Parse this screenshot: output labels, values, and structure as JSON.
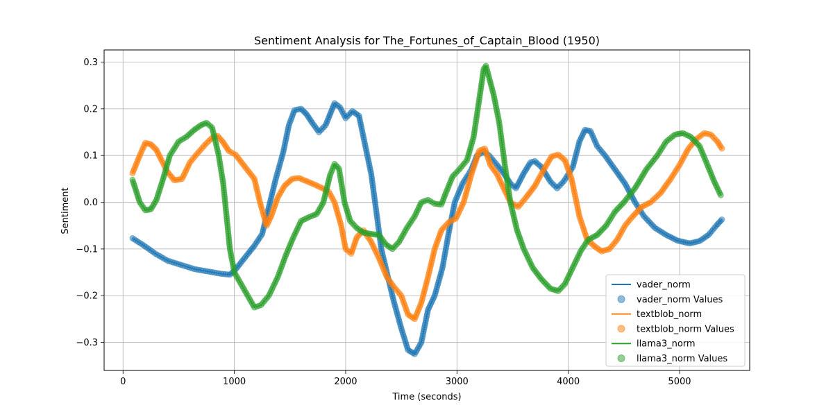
{
  "chart_data": {
    "type": "line",
    "title": "Sentiment Analysis for The_Fortunes_of_Captain_Blood (1950)",
    "xlabel": "Time (seconds)",
    "ylabel": "Sentiment",
    "xlim": [
      -170,
      5630
    ],
    "ylim": [
      -0.36,
      0.326
    ],
    "xticks": [
      0,
      1000,
      2000,
      3000,
      4000,
      5000
    ],
    "yticks": [
      -0.3,
      -0.2,
      -0.1,
      0.0,
      0.1,
      0.2,
      0.3
    ],
    "xtick_labels": [
      "0",
      "1000",
      "2000",
      "3000",
      "4000",
      "5000"
    ],
    "ytick_labels": [
      "−0.3",
      "−0.2",
      "−0.1",
      "0.0",
      "0.1",
      "0.2",
      "0.3"
    ],
    "grid": true,
    "legend_position": "lower-right",
    "legend": [
      "vader_norm",
      "vader_norm Values",
      "textblob_norm",
      "textblob_norm Values",
      "llama3_norm",
      "llama3_norm Values"
    ],
    "series": [
      {
        "name": "vader_norm",
        "color": "#1f77b4",
        "points": [
          [
            85,
            -0.077
          ],
          [
            190,
            -0.093
          ],
          [
            290,
            -0.11
          ],
          [
            400,
            -0.125
          ],
          [
            520,
            -0.134
          ],
          [
            640,
            -0.143
          ],
          [
            760,
            -0.148
          ],
          [
            880,
            -0.153
          ],
          [
            960,
            -0.155
          ],
          [
            1000,
            -0.147
          ],
          [
            1180,
            -0.093
          ],
          [
            1250,
            -0.068
          ],
          [
            1310,
            -0.01
          ],
          [
            1370,
            0.048
          ],
          [
            1440,
            0.108
          ],
          [
            1490,
            0.165
          ],
          [
            1540,
            0.197
          ],
          [
            1600,
            0.2
          ],
          [
            1650,
            0.188
          ],
          [
            1700,
            0.17
          ],
          [
            1760,
            0.15
          ],
          [
            1820,
            0.165
          ],
          [
            1900,
            0.212
          ],
          [
            1950,
            0.203
          ],
          [
            2000,
            0.18
          ],
          [
            2060,
            0.195
          ],
          [
            2120,
            0.185
          ],
          [
            2230,
            0.06
          ],
          [
            2270,
            -0.01
          ],
          [
            2320,
            -0.1
          ],
          [
            2370,
            -0.15
          ],
          [
            2430,
            -0.21
          ],
          [
            2500,
            -0.27
          ],
          [
            2560,
            -0.316
          ],
          [
            2620,
            -0.325
          ],
          [
            2680,
            -0.3
          ],
          [
            2740,
            -0.23
          ],
          [
            2800,
            -0.2
          ],
          [
            2870,
            -0.14
          ],
          [
            2930,
            -0.06
          ],
          [
            2980,
            0.0
          ],
          [
            3050,
            0.04
          ],
          [
            3130,
            0.07
          ],
          [
            3180,
            0.1
          ],
          [
            3240,
            0.108
          ],
          [
            3290,
            0.1
          ],
          [
            3360,
            0.08
          ],
          [
            3420,
            0.062
          ],
          [
            3480,
            0.04
          ],
          [
            3530,
            0.03
          ],
          [
            3600,
            0.062
          ],
          [
            3660,
            0.085
          ],
          [
            3700,
            0.088
          ],
          [
            3760,
            0.075
          ],
          [
            3840,
            0.044
          ],
          [
            3900,
            0.03
          ],
          [
            3960,
            0.045
          ],
          [
            4040,
            0.075
          ],
          [
            4100,
            0.13
          ],
          [
            4150,
            0.155
          ],
          [
            4200,
            0.152
          ],
          [
            4260,
            0.12
          ],
          [
            4330,
            0.1
          ],
          [
            4420,
            0.07
          ],
          [
            4510,
            0.04
          ],
          [
            4600,
            0.0
          ],
          [
            4680,
            -0.03
          ],
          [
            4780,
            -0.055
          ],
          [
            4880,
            -0.07
          ],
          [
            4980,
            -0.082
          ],
          [
            5090,
            -0.088
          ],
          [
            5180,
            -0.083
          ],
          [
            5260,
            -0.07
          ],
          [
            5330,
            -0.05
          ],
          [
            5380,
            -0.037
          ]
        ]
      },
      {
        "name": "textblob_norm",
        "color": "#ff7f0e",
        "points": [
          [
            85,
            0.062
          ],
          [
            150,
            0.1
          ],
          [
            200,
            0.127
          ],
          [
            250,
            0.124
          ],
          [
            300,
            0.112
          ],
          [
            350,
            0.088
          ],
          [
            400,
            0.065
          ],
          [
            460,
            0.047
          ],
          [
            530,
            0.05
          ],
          [
            600,
            0.085
          ],
          [
            670,
            0.105
          ],
          [
            740,
            0.124
          ],
          [
            800,
            0.138
          ],
          [
            850,
            0.142
          ],
          [
            900,
            0.128
          ],
          [
            950,
            0.11
          ],
          [
            1010,
            0.102
          ],
          [
            1180,
            0.05
          ],
          [
            1230,
            0.0
          ],
          [
            1290,
            -0.05
          ],
          [
            1330,
            -0.03
          ],
          [
            1390,
            0.01
          ],
          [
            1450,
            0.035
          ],
          [
            1520,
            0.05
          ],
          [
            1580,
            0.052
          ],
          [
            1650,
            0.045
          ],
          [
            1720,
            0.038
          ],
          [
            1790,
            0.03
          ],
          [
            1850,
            0.022
          ],
          [
            1900,
            0.0
          ],
          [
            1960,
            -0.05
          ],
          [
            2000,
            -0.1
          ],
          [
            2050,
            -0.11
          ],
          [
            2100,
            -0.075
          ],
          [
            2160,
            -0.06
          ],
          [
            2230,
            -0.085
          ],
          [
            2300,
            -0.12
          ],
          [
            2370,
            -0.16
          ],
          [
            2430,
            -0.18
          ],
          [
            2500,
            -0.2
          ],
          [
            2560,
            -0.24
          ],
          [
            2620,
            -0.25
          ],
          [
            2680,
            -0.215
          ],
          [
            2740,
            -0.16
          ],
          [
            2800,
            -0.1
          ],
          [
            2860,
            -0.06
          ],
          [
            2930,
            -0.042
          ],
          [
            2990,
            -0.035
          ],
          [
            3060,
            0.0
          ],
          [
            3130,
            0.06
          ],
          [
            3200,
            0.11
          ],
          [
            3250,
            0.115
          ],
          [
            3300,
            0.08
          ],
          [
            3360,
            0.06
          ],
          [
            3420,
            0.03
          ],
          [
            3480,
            0.0
          ],
          [
            3550,
            -0.01
          ],
          [
            3620,
            0.01
          ],
          [
            3700,
            0.035
          ],
          [
            3780,
            0.07
          ],
          [
            3850,
            0.098
          ],
          [
            3910,
            0.102
          ],
          [
            3970,
            0.09
          ],
          [
            4030,
            0.05
          ],
          [
            4100,
            -0.03
          ],
          [
            4170,
            -0.08
          ],
          [
            4240,
            -0.095
          ],
          [
            4300,
            -0.105
          ],
          [
            4370,
            -0.1
          ],
          [
            4440,
            -0.08
          ],
          [
            4510,
            -0.05
          ],
          [
            4580,
            -0.03
          ],
          [
            4660,
            -0.01
          ],
          [
            4740,
            0.0
          ],
          [
            4830,
            0.02
          ],
          [
            4920,
            0.05
          ],
          [
            5000,
            0.08
          ],
          [
            5080,
            0.115
          ],
          [
            5150,
            0.135
          ],
          [
            5220,
            0.148
          ],
          [
            5280,
            0.145
          ],
          [
            5340,
            0.13
          ],
          [
            5380,
            0.115
          ]
        ]
      },
      {
        "name": "llama3_norm",
        "color": "#2ca02c",
        "points": [
          [
            85,
            0.048
          ],
          [
            150,
            0.0
          ],
          [
            200,
            -0.017
          ],
          [
            250,
            -0.015
          ],
          [
            300,
            0.005
          ],
          [
            360,
            0.05
          ],
          [
            420,
            0.1
          ],
          [
            500,
            0.13
          ],
          [
            570,
            0.14
          ],
          [
            640,
            0.155
          ],
          [
            700,
            0.165
          ],
          [
            750,
            0.17
          ],
          [
            800,
            0.16
          ],
          [
            860,
            0.1
          ],
          [
            900,
            0.04
          ],
          [
            930,
            -0.03
          ],
          [
            960,
            -0.1
          ],
          [
            1000,
            -0.15
          ],
          [
            1180,
            -0.225
          ],
          [
            1240,
            -0.22
          ],
          [
            1310,
            -0.2
          ],
          [
            1390,
            -0.16
          ],
          [
            1460,
            -0.115
          ],
          [
            1530,
            -0.075
          ],
          [
            1600,
            -0.04
          ],
          [
            1670,
            -0.032
          ],
          [
            1740,
            -0.025
          ],
          [
            1800,
            0.0
          ],
          [
            1860,
            0.058
          ],
          [
            1900,
            0.082
          ],
          [
            1940,
            0.072
          ],
          [
            1990,
            0.0
          ],
          [
            2040,
            -0.04
          ],
          [
            2100,
            -0.055
          ],
          [
            2160,
            -0.065
          ],
          [
            2230,
            -0.068
          ],
          [
            2300,
            -0.07
          ],
          [
            2360,
            -0.09
          ],
          [
            2420,
            -0.1
          ],
          [
            2480,
            -0.085
          ],
          [
            2550,
            -0.055
          ],
          [
            2620,
            -0.03
          ],
          [
            2680,
            0.0
          ],
          [
            2740,
            0.005
          ],
          [
            2800,
            -0.003
          ],
          [
            2860,
            -0.005
          ],
          [
            2900,
            0.02
          ],
          [
            2960,
            0.055
          ],
          [
            3020,
            0.07
          ],
          [
            3090,
            0.09
          ],
          [
            3150,
            0.14
          ],
          [
            3200,
            0.22
          ],
          [
            3240,
            0.285
          ],
          [
            3260,
            0.292
          ],
          [
            3330,
            0.23
          ],
          [
            3380,
            0.17
          ],
          [
            3430,
            0.08
          ],
          [
            3480,
            0.0
          ],
          [
            3540,
            -0.06
          ],
          [
            3600,
            -0.1
          ],
          [
            3680,
            -0.14
          ],
          [
            3760,
            -0.165
          ],
          [
            3840,
            -0.185
          ],
          [
            3910,
            -0.19
          ],
          [
            3970,
            -0.175
          ],
          [
            4040,
            -0.14
          ],
          [
            4110,
            -0.105
          ],
          [
            4180,
            -0.08
          ],
          [
            4260,
            -0.07
          ],
          [
            4340,
            -0.05
          ],
          [
            4420,
            -0.02
          ],
          [
            4500,
            0.0
          ],
          [
            4600,
            0.03
          ],
          [
            4700,
            0.07
          ],
          [
            4800,
            0.1
          ],
          [
            4880,
            0.13
          ],
          [
            4960,
            0.145
          ],
          [
            5030,
            0.148
          ],
          [
            5100,
            0.14
          ],
          [
            5180,
            0.12
          ],
          [
            5250,
            0.08
          ],
          [
            5310,
            0.045
          ],
          [
            5370,
            0.015
          ]
        ]
      }
    ]
  }
}
